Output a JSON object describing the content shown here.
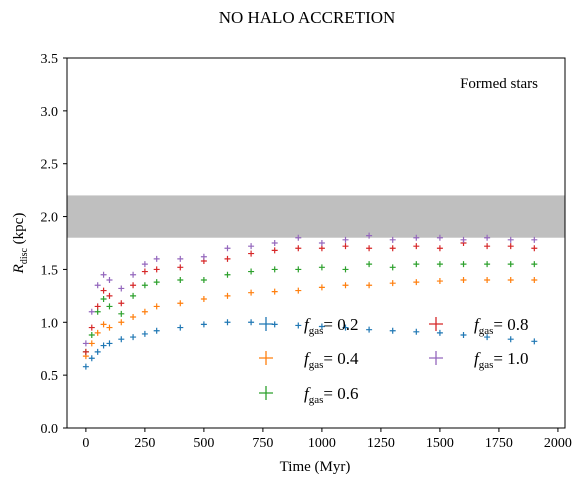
{
  "chart_data": {
    "type": "scatter",
    "title": "NO HALO ACCRETION",
    "annotation": "Formed stars",
    "xlabel": "Time (Myr)",
    "ylabel": {
      "base": "R",
      "sub": "disc",
      "unit": "(kpc)"
    },
    "xlim": [
      -80,
      2030
    ],
    "ylim": [
      0,
      3.5
    ],
    "xticks": [
      0,
      250,
      500,
      750,
      1000,
      1250,
      1500,
      1750,
      2000
    ],
    "yticks": [
      0.0,
      0.5,
      1.0,
      1.5,
      2.0,
      2.5,
      3.0,
      3.5
    ],
    "xtick_labels": [
      "0",
      "250",
      "500",
      "750",
      "1000",
      "1250",
      "1500",
      "1750",
      "2000"
    ],
    "ytick_labels": [
      "0.0",
      "0.5",
      "1.0",
      "1.5",
      "2.0",
      "2.5",
      "3.0",
      "3.5"
    ],
    "shaded_band": {
      "y0": 1.8,
      "y1": 2.2,
      "color": "#bfbfbf"
    },
    "grid": false,
    "legend": {
      "placement": "lower-right",
      "columns": 2
    },
    "marker": "+",
    "series": [
      {
        "name": "f_gas = 0.2",
        "label_base": "f",
        "label_sub": "gas",
        "label_value": "= 0.2",
        "color": "#1f77b4",
        "x": [
          0,
          25,
          50,
          75,
          100,
          150,
          200,
          250,
          300,
          400,
          500,
          600,
          700,
          800,
          900,
          1000,
          1100,
          1200,
          1300,
          1400,
          1500,
          1600,
          1700,
          1800,
          1900
        ],
        "y": [
          0.58,
          0.66,
          0.72,
          0.78,
          0.8,
          0.84,
          0.86,
          0.89,
          0.92,
          0.95,
          0.98,
          1.0,
          1.0,
          0.98,
          0.97,
          0.96,
          0.95,
          0.93,
          0.92,
          0.91,
          0.9,
          0.88,
          0.86,
          0.84,
          0.82
        ]
      },
      {
        "name": "f_gas = 0.4",
        "label_base": "f",
        "label_sub": "gas",
        "label_value": "= 0.4",
        "color": "#ff7f0e",
        "x": [
          0,
          25,
          50,
          75,
          100,
          150,
          200,
          250,
          300,
          400,
          500,
          600,
          700,
          800,
          900,
          1000,
          1100,
          1200,
          1300,
          1400,
          1500,
          1600,
          1700,
          1800,
          1900
        ],
        "y": [
          0.68,
          0.8,
          0.9,
          0.98,
          0.95,
          1.0,
          1.05,
          1.1,
          1.15,
          1.18,
          1.22,
          1.25,
          1.28,
          1.29,
          1.3,
          1.33,
          1.35,
          1.35,
          1.37,
          1.38,
          1.39,
          1.4,
          1.4,
          1.4,
          1.4
        ]
      },
      {
        "name": "f_gas = 0.6",
        "label_base": "f",
        "label_sub": "gas",
        "label_value": "= 0.6",
        "color": "#2ca02c",
        "x": [
          0,
          25,
          50,
          75,
          100,
          150,
          200,
          250,
          300,
          400,
          500,
          600,
          700,
          800,
          900,
          1000,
          1100,
          1200,
          1300,
          1400,
          1500,
          1600,
          1700,
          1800,
          1900
        ],
        "y": [
          0.72,
          0.88,
          1.1,
          1.22,
          1.15,
          1.08,
          1.25,
          1.35,
          1.38,
          1.4,
          1.4,
          1.45,
          1.48,
          1.5,
          1.5,
          1.52,
          1.5,
          1.55,
          1.52,
          1.55,
          1.55,
          1.55,
          1.55,
          1.55,
          1.55
        ]
      },
      {
        "name": "f_gas = 0.8",
        "label_base": "f",
        "label_sub": "gas",
        "label_value": "= 0.8",
        "color": "#d62728",
        "x": [
          0,
          25,
          50,
          75,
          100,
          150,
          200,
          250,
          300,
          400,
          500,
          600,
          700,
          800,
          900,
          1000,
          1100,
          1200,
          1300,
          1400,
          1500,
          1600,
          1700,
          1800,
          1900
        ],
        "y": [
          0.72,
          0.95,
          1.15,
          1.3,
          1.25,
          1.18,
          1.35,
          1.48,
          1.5,
          1.52,
          1.58,
          1.6,
          1.65,
          1.68,
          1.7,
          1.7,
          1.72,
          1.7,
          1.7,
          1.72,
          1.7,
          1.75,
          1.72,
          1.72,
          1.7
        ]
      },
      {
        "name": "f_gas = 1.0",
        "label_base": "f",
        "label_sub": "gas",
        "label_value": "= 1.0",
        "color": "#9467bd",
        "x": [
          0,
          25,
          50,
          75,
          100,
          150,
          200,
          250,
          300,
          400,
          500,
          600,
          700,
          800,
          900,
          1000,
          1100,
          1200,
          1300,
          1400,
          1500,
          1600,
          1700,
          1800,
          1900
        ],
        "y": [
          0.8,
          1.1,
          1.35,
          1.45,
          1.4,
          1.32,
          1.45,
          1.55,
          1.6,
          1.6,
          1.62,
          1.7,
          1.72,
          1.75,
          1.8,
          1.75,
          1.78,
          1.82,
          1.78,
          1.8,
          1.8,
          1.78,
          1.8,
          1.78,
          1.78
        ]
      }
    ]
  }
}
